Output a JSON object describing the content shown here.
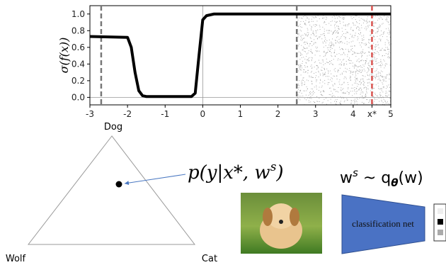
{
  "chart_data": {
    "type": "line",
    "ylabel": "σ(f(x))",
    "x": [
      -3,
      -2.0,
      -1.9,
      -1.8,
      -1.7,
      -1.6,
      -1.5,
      -0.3,
      -0.2,
      -0.1,
      0,
      0.1,
      0.3,
      5
    ],
    "values": [
      0.73,
      0.72,
      0.6,
      0.3,
      0.08,
      0.02,
      0.01,
      0.01,
      0.05,
      0.5,
      0.93,
      0.98,
      1.0,
      1.0
    ],
    "color": "#000000",
    "xlim": [
      -3,
      5
    ],
    "ylim": [
      -0.09,
      1.1
    ],
    "xticks": [
      -3,
      -2,
      -1,
      0,
      1,
      2,
      3,
      4,
      {
        "value": 4.5,
        "label": "x*"
      },
      5
    ],
    "yticks": [
      {
        "value": 0,
        "label": "0.0"
      },
      0.2,
      0.4,
      0.6,
      0.8,
      {
        "value": 1,
        "label": "1.0"
      }
    ],
    "vlines": [
      {
        "x": -2.7,
        "color": "#777777"
      },
      {
        "x": 2.5,
        "color": "#777777"
      },
      {
        "x": 4.5,
        "color": "#d9534f"
      }
    ]
  },
  "diagram": {
    "vertices": [
      "Dog",
      "Wolf",
      "Cat"
    ],
    "likelihood": [
      "p(y|x*, w",
      "s",
      ")"
    ],
    "posterior": [
      "w",
      "s",
      " ~ q",
      "θ",
      "(w)"
    ],
    "network": "classification net"
  }
}
